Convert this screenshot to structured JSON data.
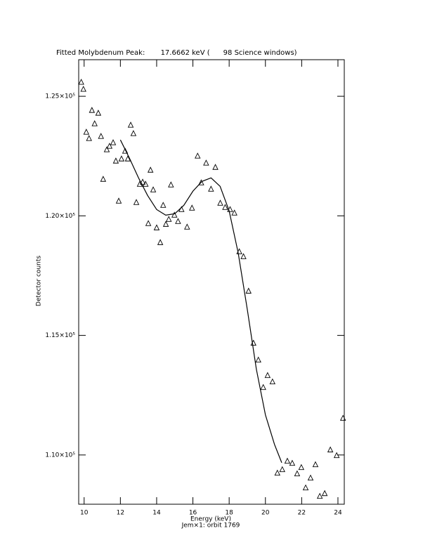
{
  "chart_data": {
    "type": "scatter",
    "title": "Fitted Molybdenum Peak:       17.6662 keV (      98 Science windows)",
    "x_label": "Energy (keV)",
    "x_sublabel": "Jem×1: orbit 1769",
    "y_label": "Detector counts",
    "xlim": [
      9.7,
      24.35
    ],
    "ylim": [
      107940,
      126530
    ],
    "xticks": [
      10,
      12,
      14,
      16,
      18,
      20,
      22,
      24
    ],
    "yticks": [
      {
        "value": 110000,
        "label": "1.10×10⁵"
      },
      {
        "value": 115000,
        "label": "1.15×10⁵"
      },
      {
        "value": 120000,
        "label": "1.20×10⁵"
      },
      {
        "value": 125000,
        "label": "1.25×10⁵"
      }
    ],
    "series": [
      {
        "mode": "markers",
        "color": "#000000",
        "x": [
          9.84,
          9.96,
          10.12,
          10.27,
          10.43,
          10.58,
          10.78,
          10.93,
          11.05,
          11.25,
          11.4,
          11.6,
          11.75,
          11.91,
          12.06,
          12.26,
          12.41,
          12.57,
          12.72,
          12.88,
          13.07,
          13.23,
          13.39,
          13.54,
          13.66,
          13.81,
          14.0,
          14.2,
          14.36,
          14.51,
          14.67,
          14.79,
          14.98,
          15.18,
          15.37,
          15.68,
          15.95,
          16.26,
          16.46,
          16.73,
          17.0,
          17.24,
          17.51,
          17.78,
          18.05,
          18.29,
          18.56,
          18.79,
          19.07,
          19.34,
          19.61,
          19.88,
          20.12,
          20.39,
          20.66,
          20.93,
          21.21,
          21.48,
          21.75,
          21.98,
          22.22,
          22.49,
          22.76,
          23.0,
          23.27,
          23.58,
          23.93,
          24.28
        ],
        "values": [
          125588,
          125294,
          123500,
          123236,
          124412,
          123853,
          124294,
          123324,
          121530,
          122765,
          122912,
          123059,
          122294,
          120618,
          122382,
          122706,
          122382,
          123794,
          123441,
          120559,
          121324,
          121412,
          121324,
          119677,
          121912,
          121088,
          119500,
          118883,
          120441,
          119647,
          119853,
          121294,
          120030,
          119765,
          120265,
          119530,
          120324,
          122500,
          121382,
          122206,
          121118,
          122029,
          120530,
          120353,
          120265,
          120118,
          118500,
          118294,
          116853,
          114676,
          113970,
          112824,
          113324,
          113059,
          109242,
          109388,
          109741,
          109653,
          109212,
          109476,
          108624,
          109035,
          109594,
          108271,
          108388,
          110212,
          109976,
          111535
        ]
      },
      {
        "mode": "line",
        "color": "#000000",
        "x": [
          12.0,
          12.5,
          13.0,
          13.5,
          14.0,
          14.5,
          15.0,
          15.5,
          16.0,
          16.5,
          17.0,
          17.5,
          18.0,
          18.5,
          19.0,
          19.5,
          20.0,
          20.5,
          20.9
        ],
        "values": [
          123177,
          122412,
          121588,
          120853,
          120265,
          120030,
          120088,
          120441,
          121030,
          121441,
          121588,
          121235,
          120206,
          118441,
          116088,
          113588,
          111676,
          110441,
          109676
        ]
      }
    ]
  }
}
